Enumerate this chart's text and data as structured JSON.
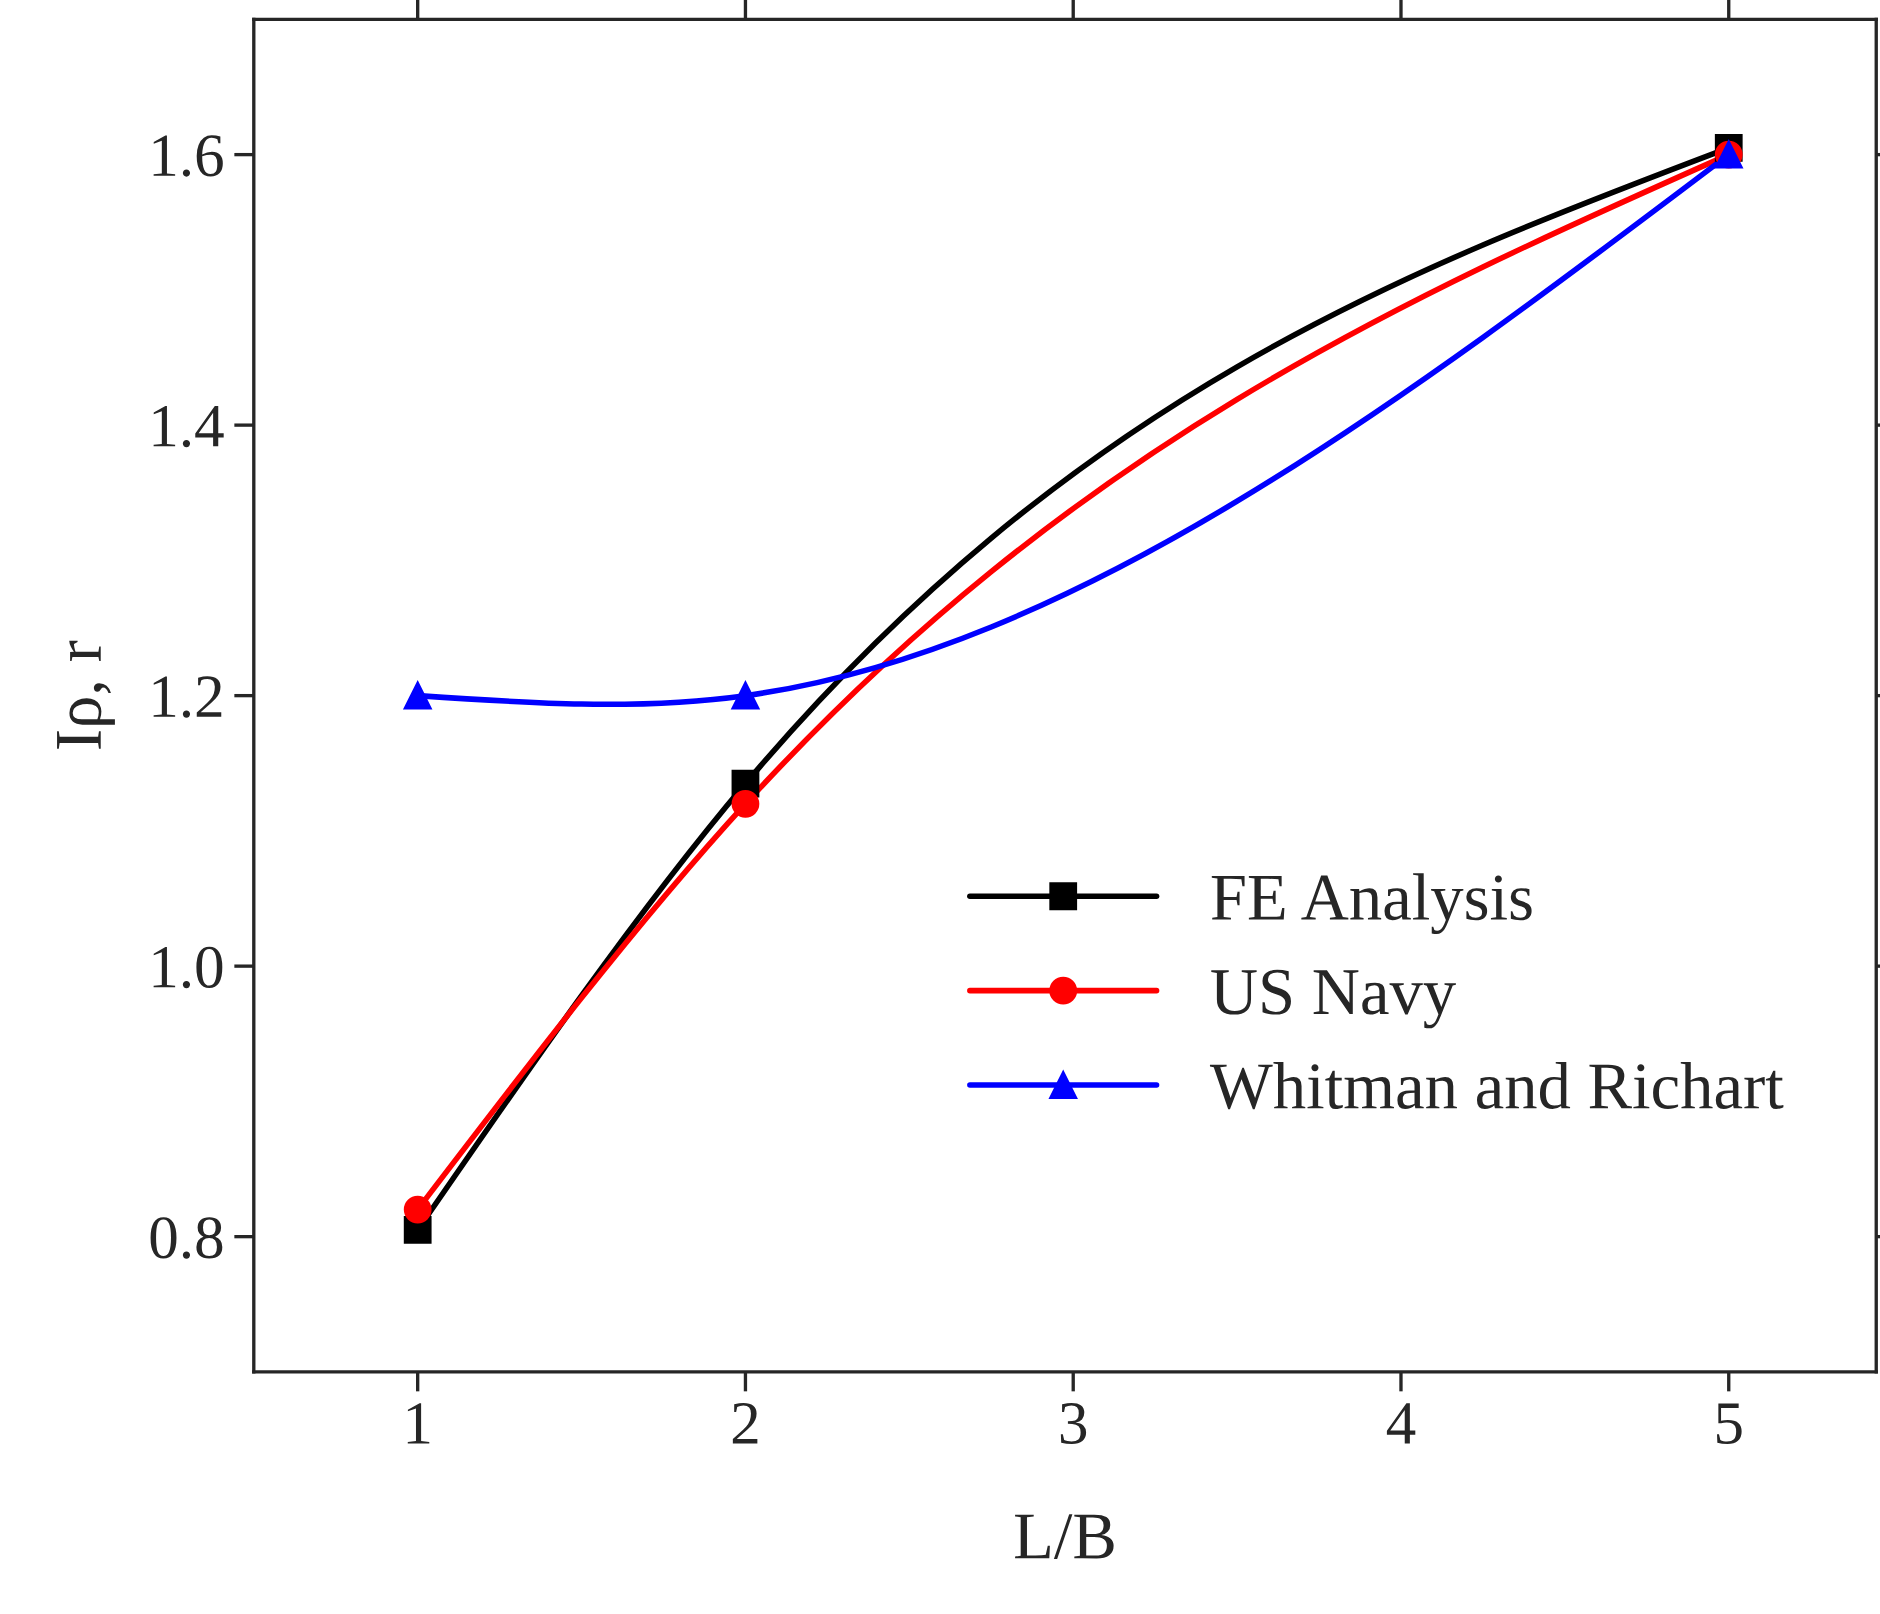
{
  "chart_data": {
    "type": "line",
    "xlabel": "L/B",
    "ylabel": "Iρ, r",
    "x": [
      1,
      2,
      5
    ],
    "series": [
      {
        "name": "FE Analysis",
        "color": "#000000",
        "marker": "square",
        "values": [
          0.805,
          1.135,
          1.605
        ]
      },
      {
        "name": "US Navy",
        "color": "#ff0000",
        "marker": "circle",
        "values": [
          0.82,
          1.12,
          1.6
        ]
      },
      {
        "name": "Whitman and Richart",
        "color": "#0000ff",
        "marker": "triangle",
        "values": [
          1.2,
          1.2,
          1.6
        ]
      }
    ],
    "xlim": [
      0.5,
      5.45
    ],
    "xticks": [
      1,
      2,
      3,
      4,
      5
    ],
    "ylim": [
      0.7,
      1.7
    ],
    "yticks": [
      {
        "value": 0.8,
        "label": "0.8"
      },
      {
        "value": 1.0,
        "label": "1.0"
      },
      {
        "value": 1.2,
        "label": "1.2"
      },
      {
        "value": 1.4,
        "label": "1.4"
      },
      {
        "value": 1.6,
        "label": "1.6"
      }
    ],
    "grid": false,
    "legend": "bottom right",
    "line_style": "solid"
  }
}
